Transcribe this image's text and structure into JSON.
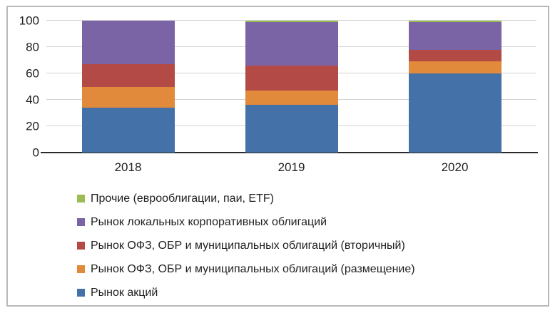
{
  "chart_data": {
    "type": "bar",
    "stacked": true,
    "orientation": "vertical",
    "categories": [
      "2018",
      "2019",
      "2020"
    ],
    "series": [
      {
        "name": "Рынок акций",
        "color": "#4472A8",
        "values": [
          34,
          36,
          60
        ]
      },
      {
        "name": "Рынок ОФЗ, ОБР и муниципальных облигаций (размещение)",
        "color": "#E18A3C",
        "values": [
          16,
          11,
          9
        ]
      },
      {
        "name": "Рынок ОФЗ, ОБР и муниципальных облигаций (вторичный)",
        "color": "#B34A45",
        "values": [
          17,
          19,
          9
        ]
      },
      {
        "name": "Рынок локальных корпоративных облигаций",
        "color": "#7B64A5",
        "values": [
          33,
          33,
          21
        ]
      },
      {
        "name": "Прочие (еврооблигации, паи, ETF)",
        "color": "#9CBB52",
        "values": [
          0,
          1,
          1
        ]
      }
    ],
    "title": "",
    "xlabel": "",
    "ylabel": "",
    "ylim": [
      0,
      100
    ],
    "yticks": [
      0,
      20,
      40,
      60,
      80,
      100
    ],
    "grid": true,
    "legend_position": "bottom-left",
    "legend_order_top_to_bottom": [
      "Прочие (еврооблигации, паи, ETF)",
      "Рынок локальных корпоративных облигаций",
      "Рынок ОФЗ, ОБР и муниципальных облигаций (вторичный)",
      "Рынок ОФЗ, ОБР и муниципальных облигаций (размещение)",
      "Рынок акций"
    ]
  },
  "colors": {
    "frame_border": "#b9b9b9",
    "gridline": "#d2d2d2",
    "axis_line": "#2a2a2a",
    "text": "#1f1f1f",
    "background": "#ffffff"
  }
}
